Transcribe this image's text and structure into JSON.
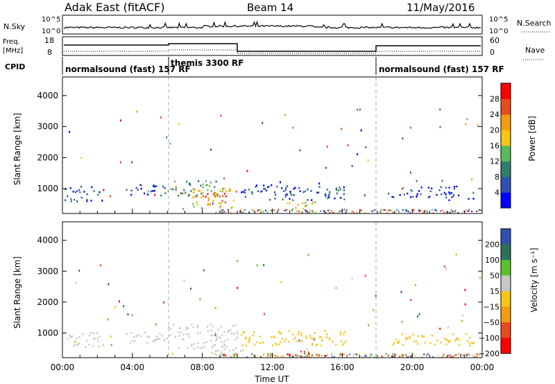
{
  "header": {
    "title": "Adak East (fitACF)",
    "beam": "Beam 14",
    "date": "11/May/2016"
  },
  "strip_labels": {
    "nsky": "N.Sky",
    "nsearch": "N.Search",
    "freq": "Freq.",
    "freq_unit": "[MHz]",
    "nave": "Nave",
    "cpid": "CPID",
    "left_top": "10^5",
    "left_bottom": "10^0",
    "right_top": "10^5",
    "right_bottom": "10^0",
    "freq_top": "18",
    "freq_bottom": "8",
    "nave_top": "60",
    "nave_bottom": "0"
  },
  "cpid_segments": [
    {
      "label": "normalsound (fast) 157 RF",
      "start_hour": 0
    },
    {
      "label": "themis 3300 RF",
      "start_hour": 6
    },
    {
      "label": "normalsound (fast) 157 RF",
      "start_hour": 18
    }
  ],
  "chart_data": [
    {
      "type": "heatmap",
      "name": "power-panel",
      "xlabel": "Time UT",
      "ylabel": "Slant Range [km]",
      "xlim": [
        0,
        24
      ],
      "ylim": [
        200,
        4600
      ],
      "xticks": [
        "00:00",
        "04:00",
        "08:00",
        "12:00",
        "16:00",
        "20:00",
        "00:00"
      ],
      "yticks": [
        "1000",
        "2000",
        "3000",
        "4000"
      ],
      "colorbar": {
        "label": "Power [dB]",
        "ticks": [
          "4",
          "8",
          "12",
          "16",
          "20",
          "24",
          "28"
        ],
        "range": [
          0,
          30
        ]
      },
      "regions": [
        {
          "t0": 0.1,
          "t1": 2.1,
          "r0": 600,
          "r1": 1100,
          "level": 6
        },
        {
          "t0": 3.6,
          "t1": 6.0,
          "r0": 800,
          "r1": 1150,
          "level": 5
        },
        {
          "t0": 6.0,
          "t1": 9.0,
          "r0": 800,
          "r1": 1300,
          "level": 12
        },
        {
          "t0": 7.4,
          "t1": 10.0,
          "r0": 400,
          "r1": 1050,
          "level": 20
        },
        {
          "t0": 8.0,
          "t1": 9.5,
          "r0": 500,
          "r1": 900,
          "level": 26
        },
        {
          "t0": 10.2,
          "t1": 16.2,
          "r0": 650,
          "r1": 1150,
          "level": 6
        },
        {
          "t0": 12.8,
          "t1": 14.6,
          "r0": 300,
          "r1": 600,
          "level": 18
        },
        {
          "t0": 18.6,
          "t1": 22.5,
          "r0": 750,
          "r1": 1100,
          "level": 4
        },
        {
          "t0": 21.8,
          "t1": 23.5,
          "r0": 650,
          "r1": 900,
          "level": 6
        }
      ]
    },
    {
      "type": "heatmap",
      "name": "velocity-panel",
      "xlabel": "Time UT",
      "ylabel": "Slant Range [km]",
      "xlim": [
        0,
        24
      ],
      "ylim": [
        200,
        4600
      ],
      "xticks": [
        "00:00",
        "04:00",
        "08:00",
        "12:00",
        "16:00",
        "20:00",
        "00:00"
      ],
      "yticks": [
        "1000",
        "2000",
        "3000",
        "4000"
      ],
      "colorbar": {
        "label": "Velocity [m s⁻¹]",
        "ticks": [
          "200",
          "100",
          "50",
          "15",
          "−15",
          "−50",
          "−100",
          "−200"
        ],
        "range": [
          -250,
          250
        ]
      },
      "regions": [
        {
          "t0": 0.1,
          "t1": 2.1,
          "r0": 550,
          "r1": 1050,
          "level": 0
        },
        {
          "t0": 3.6,
          "t1": 6.0,
          "r0": 700,
          "r1": 1100,
          "level": 0
        },
        {
          "t0": 6.0,
          "t1": 10.0,
          "r0": 500,
          "r1": 1300,
          "level": 0
        },
        {
          "t0": 8.5,
          "t1": 10.3,
          "r0": 300,
          "r1": 600,
          "level": 0
        },
        {
          "t0": 10.2,
          "t1": 16.2,
          "r0": 600,
          "r1": 1100,
          "level": -30
        },
        {
          "t0": 13.0,
          "t1": 14.5,
          "r0": 250,
          "r1": 450,
          "level": -120
        },
        {
          "t0": 18.6,
          "t1": 23.5,
          "r0": 600,
          "r1": 1000,
          "level": -20
        }
      ]
    }
  ]
}
